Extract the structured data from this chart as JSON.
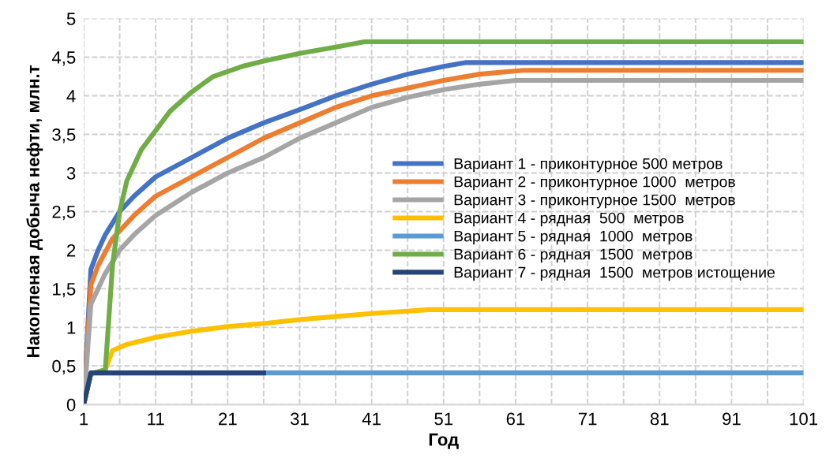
{
  "chart_data": {
    "type": "line",
    "xlabel": "Год",
    "ylabel": "Накопленая добыча нефти, млн.т",
    "xlim": [
      1,
      101
    ],
    "xticks": [
      1,
      {
        "value": 6,
        "label": null
      },
      11,
      {
        "value": 16,
        "label": null
      },
      21,
      {
        "value": 26,
        "label": null
      },
      31,
      {
        "value": 36,
        "label": null
      },
      41,
      {
        "value": 46,
        "label": null
      },
      51,
      {
        "value": 56,
        "label": null
      },
      61,
      {
        "value": 66,
        "label": null
      },
      71,
      {
        "value": 76,
        "label": null
      },
      81,
      {
        "value": 86,
        "label": null
      },
      91,
      {
        "value": 96,
        "label": null
      },
      101
    ],
    "ylim": [
      0,
      5
    ],
    "yticks": [
      0,
      {
        "value": 0.5,
        "label": "0,5"
      },
      1,
      {
        "value": 1.5,
        "label": "1,5"
      },
      2,
      {
        "value": 2.5,
        "label": "2,5"
      },
      3,
      {
        "value": 3.5,
        "label": "3,5"
      },
      4,
      {
        "value": 4.5,
        "label": "4,5"
      },
      5
    ],
    "grid": true,
    "legend": "right",
    "marker": "none",
    "line_style": "solid",
    "series": [
      {
        "name": "Вариант 1 - приконтурное 500 метров",
        "color": "#4472c4",
        "x": [
          1,
          2,
          3,
          4,
          6,
          8,
          11,
          16,
          21,
          26,
          31,
          36,
          41,
          46,
          51,
          54,
          101
        ],
        "values": [
          0,
          1.75,
          2.0,
          2.2,
          2.5,
          2.7,
          2.95,
          3.2,
          3.45,
          3.65,
          3.82,
          4.0,
          4.15,
          4.28,
          4.38,
          4.43,
          4.43
        ]
      },
      {
        "name": "Вариант 2 - приконтурное 1000  метров",
        "color": "#ed7d31",
        "x": [
          1,
          2,
          3,
          5,
          8,
          11,
          16,
          21,
          26,
          31,
          36,
          41,
          46,
          51,
          56,
          62,
          101
        ],
        "values": [
          0,
          1.55,
          1.8,
          2.15,
          2.45,
          2.7,
          2.95,
          3.2,
          3.45,
          3.65,
          3.85,
          4.0,
          4.1,
          4.2,
          4.28,
          4.33,
          4.33
        ]
      },
      {
        "name": "Вариант 3 - приконтурное 1500  метров",
        "color": "#a5a5a5",
        "x": [
          1,
          2,
          4,
          6,
          8,
          11,
          16,
          21,
          26,
          31,
          36,
          41,
          46,
          51,
          56,
          61,
          101
        ],
        "values": [
          0,
          1.3,
          1.7,
          2.0,
          2.2,
          2.45,
          2.75,
          3.0,
          3.2,
          3.45,
          3.65,
          3.85,
          3.98,
          4.08,
          4.15,
          4.2,
          4.2
        ]
      },
      {
        "name": "Вариант 4 - рядная  500  метров",
        "color": "#ffc000",
        "x": [
          1,
          2,
          4,
          5,
          7,
          11,
          16,
          21,
          26,
          31,
          36,
          41,
          46,
          49,
          101
        ],
        "values": [
          0,
          0.4,
          0.45,
          0.7,
          0.78,
          0.87,
          0.95,
          1.01,
          1.05,
          1.1,
          1.14,
          1.18,
          1.21,
          1.23,
          1.23
        ]
      },
      {
        "name": "Вариант 5 - рядная  1000  метров",
        "color": "#5b9bd5",
        "x": [
          1,
          2,
          101
        ],
        "values": [
          0,
          0.41,
          0.41
        ]
      },
      {
        "name": "Вариант 6 - рядная  1500  метров",
        "color": "#70ad47",
        "x": [
          1,
          2,
          4,
          5,
          6,
          7,
          9,
          11,
          13,
          16,
          19,
          23,
          26,
          31,
          36,
          40,
          101
        ],
        "values": [
          0,
          0.4,
          0.45,
          1.8,
          2.5,
          2.9,
          3.3,
          3.55,
          3.8,
          4.05,
          4.25,
          4.38,
          4.45,
          4.55,
          4.63,
          4.7,
          4.7
        ]
      },
      {
        "name": "Вариант 7 - рядная  1500  метров истощение",
        "color": "#264478",
        "x": [
          1,
          2,
          26
        ],
        "values": [
          0,
          0.41,
          0.41
        ]
      }
    ]
  }
}
